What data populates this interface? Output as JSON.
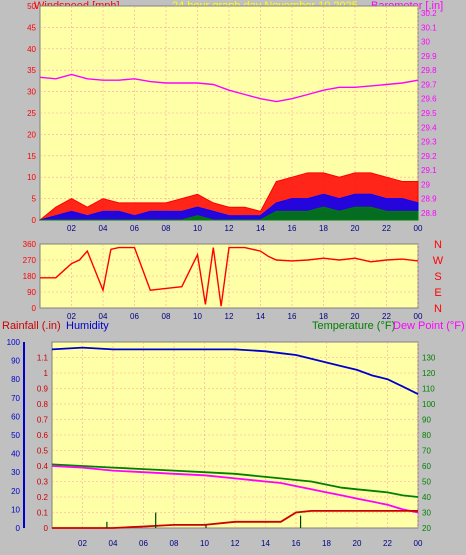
{
  "header": {
    "windspeed_label": "Windspeed [mph]",
    "title": "24 hour graph day   November 10 2025",
    "barometer_label": "Barometer [.in]"
  },
  "colors": {
    "background": "#c0c0c0",
    "plot_background": "#ffffa8",
    "grid": "#ffa0a0",
    "wind_gust": "#ff0000",
    "wind_avg": "#0000ff",
    "wind_low": "#008000",
    "barometer": "#ff00ff",
    "direction": "#ff0000",
    "rainfall": "#cc0000",
    "humidity": "#0000cc",
    "temperature": "#008000",
    "dew_point": "#ff00ff",
    "title_text": "#ffff00"
  },
  "x_axis": {
    "ticks": [
      "02",
      "04",
      "06",
      "08",
      "10",
      "12",
      "14",
      "16",
      "18",
      "20",
      "22",
      "00"
    ]
  },
  "chart_data": [
    {
      "type": "line",
      "name": "wind-and-barometer",
      "left_axis": {
        "label": "Windspeed [mph]",
        "ylim": [
          0,
          50
        ],
        "ticks": [
          "0",
          "5",
          "10",
          "15",
          "20",
          "25",
          "30",
          "35",
          "40",
          "45",
          "50"
        ]
      },
      "right_axis": {
        "label": "Barometer [.in]",
        "ylim": [
          28.75,
          30.25
        ],
        "ticks": [
          "28.8",
          "28.9",
          "29",
          "29.1",
          "29.2",
          "29.3",
          "29.4",
          "29.5",
          "29.6",
          "29.7",
          "29.8",
          "29.9",
          "30",
          "30.1",
          "30.2"
        ]
      },
      "grid": true,
      "x": [
        0,
        1,
        2,
        3,
        4,
        5,
        6,
        7,
        8,
        9,
        10,
        11,
        12,
        13,
        14,
        15,
        16,
        17,
        18,
        19,
        20,
        21,
        22,
        23,
        24
      ],
      "series": [
        {
          "name": "Windspeed gust",
          "values": [
            0,
            3,
            5,
            3,
            5,
            4,
            4,
            4,
            4,
            5,
            6,
            4,
            3,
            3,
            2,
            9,
            10,
            11,
            11,
            10,
            11,
            11,
            10,
            9,
            9
          ]
        },
        {
          "name": "Windspeed avg",
          "values": [
            0,
            1,
            2,
            1,
            2,
            2,
            1,
            2,
            2,
            2,
            3,
            2,
            1,
            1,
            1,
            4,
            5,
            5,
            6,
            5,
            6,
            6,
            5,
            5,
            4
          ]
        },
        {
          "name": "Windspeed low",
          "values": [
            0,
            0,
            0,
            0,
            0,
            0,
            0,
            0,
            0,
            0,
            1,
            0,
            0,
            0,
            0,
            2,
            2,
            2,
            3,
            2,
            3,
            3,
            2,
            2,
            2
          ]
        },
        {
          "name": "Barometer",
          "values": [
            29.75,
            29.74,
            29.77,
            29.74,
            29.73,
            29.73,
            29.74,
            29.72,
            29.71,
            29.71,
            29.71,
            29.7,
            29.66,
            29.63,
            29.6,
            29.58,
            29.6,
            29.63,
            29.66,
            29.68,
            29.68,
            29.69,
            29.7,
            29.71,
            29.73
          ]
        }
      ]
    },
    {
      "type": "line",
      "name": "wind-direction",
      "left_axis": {
        "ylim": [
          0,
          360
        ],
        "ticks": [
          "0",
          "90",
          "180",
          "270",
          "360"
        ]
      },
      "right_axis": {
        "ticks": [
          "N",
          "W",
          "S",
          "E",
          "N"
        ]
      },
      "grid": true,
      "x": [
        0,
        1,
        1.5,
        2,
        2.5,
        3,
        4,
        4.5,
        5,
        6,
        7,
        8,
        9,
        10,
        10.5,
        11,
        11.5,
        12,
        13,
        14,
        14.5,
        15,
        16,
        17,
        18,
        19,
        20,
        21,
        22,
        23,
        24
      ],
      "series": [
        {
          "name": "Wind direction",
          "values": [
            170,
            170,
            210,
            250,
            270,
            320,
            100,
            330,
            340,
            340,
            100,
            110,
            120,
            300,
            20,
            340,
            10,
            340,
            340,
            320,
            290,
            270,
            265,
            270,
            280,
            270,
            280,
            260,
            270,
            275,
            265
          ]
        }
      ]
    },
    {
      "type": "line",
      "name": "rain-humidity-temperature",
      "left_axis": {
        "label": "Rainfall [.in]",
        "ylim": [
          0,
          1.2
        ],
        "ticks": [
          "0",
          "0.1",
          "0.2",
          "0.3",
          "0.4",
          "0.5",
          "0.6",
          "0.7",
          "0.8",
          "0.9",
          "1",
          "1.1"
        ]
      },
      "left_axis_2": {
        "label": "Humidity",
        "ylim": [
          0,
          100
        ],
        "ticks": [
          "0",
          "10",
          "20",
          "30",
          "40",
          "50",
          "60",
          "70",
          "80",
          "90",
          "100"
        ]
      },
      "right_axis": {
        "label": "Temperature (°F) Dew Point (°F)",
        "ylim": [
          20,
          140
        ],
        "ticks": [
          "20",
          "30",
          "40",
          "50",
          "60",
          "70",
          "80",
          "90",
          "100",
          "110",
          "120",
          "130"
        ]
      },
      "grid": true,
      "x": [
        0,
        2,
        4,
        6,
        8,
        10,
        12,
        14,
        15,
        16,
        17,
        18,
        19,
        20,
        21,
        22,
        23,
        24
      ],
      "series": [
        {
          "name": "Humidity",
          "values": [
            96,
            97,
            96,
            96,
            96,
            96,
            96,
            95,
            94,
            93,
            91,
            89,
            87,
            85,
            82,
            80,
            76,
            72
          ]
        },
        {
          "name": "Temperature",
          "values": [
            61,
            60,
            59,
            58,
            57,
            56,
            55,
            53,
            52,
            51,
            50,
            48,
            46,
            45,
            44,
            43,
            41,
            40
          ]
        },
        {
          "name": "Dew Point",
          "values": [
            60,
            59,
            57,
            56,
            55,
            54,
            52,
            50,
            49,
            47,
            45,
            43,
            41,
            39,
            37,
            35,
            32,
            30
          ]
        },
        {
          "name": "Rainfall",
          "values": [
            0,
            0,
            0,
            0.01,
            0.02,
            0.02,
            0.04,
            0.04,
            0.04,
            0.1,
            0.11,
            0.11,
            0.11,
            0.11,
            0.11,
            0.11,
            0.11,
            0.11
          ]
        }
      ],
      "rain_bars": [
        {
          "x": 3.6,
          "value": 0.04
        },
        {
          "x": 6.8,
          "value": 0.1
        },
        {
          "x": 10.1,
          "value": 0.02
        },
        {
          "x": 16.3,
          "value": 0.08
        }
      ]
    }
  ],
  "lower_header": {
    "rainfall_label": "Rainfall (.in)",
    "humidity_label": "Humidity",
    "temperature_label": "Temperature (°F)",
    "dewpoint_label": "Dew Point (°F)"
  }
}
